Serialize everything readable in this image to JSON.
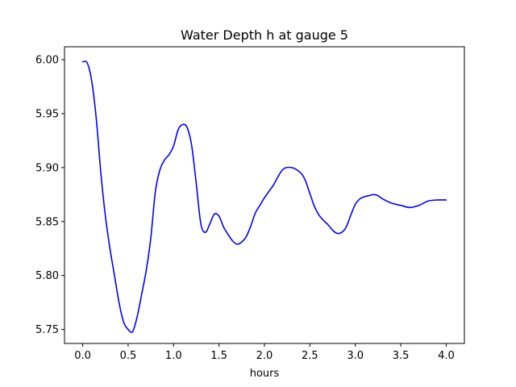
{
  "chart_data": {
    "type": "line",
    "title": "Water Depth h at gauge 5",
    "xlabel": "hours",
    "ylabel": "",
    "xlim": [
      -0.2,
      4.2
    ],
    "ylim": [
      5.737,
      6.012
    ],
    "xticks": [
      0.0,
      0.5,
      1.0,
      1.5,
      2.0,
      2.5,
      3.0,
      3.5,
      4.0
    ],
    "xtick_labels": [
      "0.0",
      "0.5",
      "1.0",
      "1.5",
      "2.0",
      "2.5",
      "3.0",
      "3.5",
      "4.0"
    ],
    "yticks": [
      5.75,
      5.8,
      5.85,
      5.9,
      5.95,
      6.0
    ],
    "ytick_labels": [
      "5.75",
      "5.80",
      "5.85",
      "5.90",
      "5.95",
      "6.00"
    ],
    "grid": false,
    "series": [
      {
        "color": "#0000ff",
        "x": [
          0.0,
          0.05,
          0.1,
          0.15,
          0.2,
          0.25,
          0.3,
          0.35,
          0.4,
          0.45,
          0.5,
          0.55,
          0.6,
          0.65,
          0.7,
          0.75,
          0.8,
          0.85,
          0.9,
          0.95,
          1.0,
          1.05,
          1.1,
          1.15,
          1.2,
          1.25,
          1.3,
          1.35,
          1.4,
          1.45,
          1.5,
          1.55,
          1.6,
          1.65,
          1.7,
          1.75,
          1.8,
          1.85,
          1.9,
          1.95,
          2.0,
          2.05,
          2.1,
          2.2,
          2.3,
          2.4,
          2.45,
          2.5,
          2.55,
          2.6,
          2.65,
          2.7,
          2.75,
          2.8,
          2.85,
          2.9,
          2.95,
          3.0,
          3.05,
          3.1,
          3.15,
          3.2,
          3.25,
          3.3,
          3.4,
          3.5,
          3.6,
          3.7,
          3.8,
          3.9,
          4.0
        ],
        "y": [
          5.998,
          5.997,
          5.98,
          5.945,
          5.895,
          5.855,
          5.825,
          5.8,
          5.775,
          5.757,
          5.75,
          5.748,
          5.762,
          5.783,
          5.805,
          5.835,
          5.878,
          5.898,
          5.907,
          5.912,
          5.92,
          5.935,
          5.94,
          5.937,
          5.92,
          5.885,
          5.848,
          5.84,
          5.848,
          5.857,
          5.855,
          5.845,
          5.838,
          5.832,
          5.829,
          5.831,
          5.836,
          5.846,
          5.858,
          5.865,
          5.872,
          5.878,
          5.884,
          5.898,
          5.9,
          5.895,
          5.888,
          5.876,
          5.864,
          5.856,
          5.851,
          5.847,
          5.842,
          5.839,
          5.84,
          5.845,
          5.856,
          5.866,
          5.871,
          5.873,
          5.874,
          5.875,
          5.874,
          5.871,
          5.867,
          5.865,
          5.863,
          5.865,
          5.869,
          5.87,
          5.87
        ]
      }
    ]
  }
}
